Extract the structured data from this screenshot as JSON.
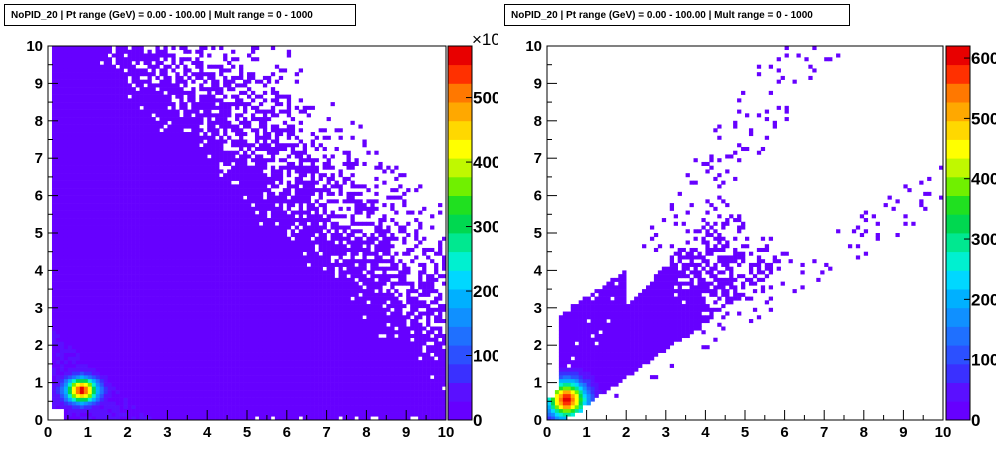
{
  "panels": [
    {
      "title": "NoPID_20 | Pt range (GeV) = 0.00 - 100.00 | Mult range = 0 - 1000"
    },
    {
      "title": "NoPID_20 | Pt range (GeV) = 0.00 - 100.00 | Mult range = 0 - 1000"
    }
  ],
  "palette": [
    "#6600ff",
    "#5a10ff",
    "#3a30ff",
    "#2c50ff",
    "#1f70ff",
    "#1090ff",
    "#00b0ff",
    "#00d8ff",
    "#00f0d0",
    "#00e890",
    "#00d850",
    "#20e020",
    "#70f000",
    "#c0f800",
    "#ffff00",
    "#ffd800",
    "#ffa800",
    "#ff7800",
    "#ff3000",
    "#e80000"
  ],
  "chart_data": [
    {
      "type": "heatmap",
      "title": "NoPID_20 | Pt range (GeV) = 0.00 - 100.00 | Mult range = 0 - 1000",
      "x_ticks": [
        "0",
        "1",
        "2",
        "3",
        "4",
        "5",
        "6",
        "7",
        "8",
        "9",
        "10"
      ],
      "y_ticks": [
        "0",
        "1",
        "2",
        "3",
        "4",
        "5",
        "6",
        "7",
        "8",
        "9",
        "10"
      ],
      "xlim": [
        0,
        10
      ],
      "ylim": [
        0,
        10
      ],
      "colorbar_labels": [
        "0",
        "100",
        "200",
        "300",
        "400",
        "500"
      ],
      "colorbar_exponent_label": "×10",
      "colorbar_max": 580,
      "peak": {
        "x": 0.85,
        "y": 0.8
      }
    },
    {
      "type": "heatmap",
      "title": "NoPID_20 | Pt range (GeV) = 0.00 - 100.00 | Mult range = 0 - 1000",
      "x_ticks": [
        "0",
        "1",
        "2",
        "3",
        "4",
        "5",
        "6",
        "7",
        "8",
        "9",
        "10"
      ],
      "y_ticks": [
        "0",
        "1",
        "2",
        "3",
        "4",
        "5",
        "6",
        "7",
        "8",
        "9",
        "10"
      ],
      "xlim": [
        0,
        10
      ],
      "ylim": [
        0,
        10
      ],
      "colorbar_labels": [
        "0",
        "100",
        "200",
        "300",
        "400",
        "500",
        "600"
      ],
      "colorbar_max": 620,
      "peak": {
        "x": 0.5,
        "y": 0.55
      }
    }
  ]
}
